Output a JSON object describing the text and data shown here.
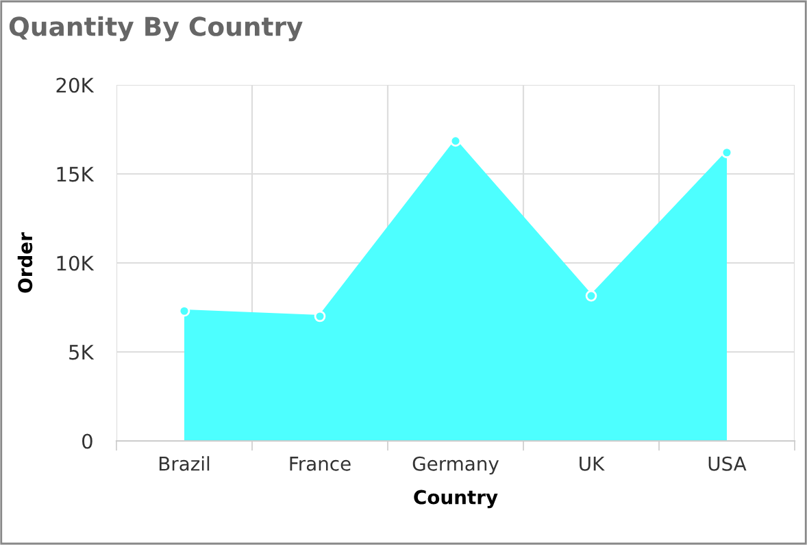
{
  "chart_data": {
    "type": "area",
    "title": "Quantity By Country",
    "xlabel": "Country",
    "ylabel": "Order",
    "categories": [
      "Brazil",
      "France",
      "Germany",
      "UK",
      "USA"
    ],
    "series": [
      {
        "color": "#4dffff",
        "values": [
          7300,
          7000,
          16850,
          8150,
          16200
        ]
      }
    ],
    "ylim": [
      0,
      20000
    ],
    "yticks": [
      {
        "value": 0,
        "label": "0"
      },
      {
        "value": 5000,
        "label": "5K"
      },
      {
        "value": 10000,
        "label": "10K"
      },
      {
        "value": 15000,
        "label": "15K"
      },
      {
        "value": 20000,
        "label": "20K"
      }
    ],
    "grid": true,
    "marker": "circle"
  }
}
